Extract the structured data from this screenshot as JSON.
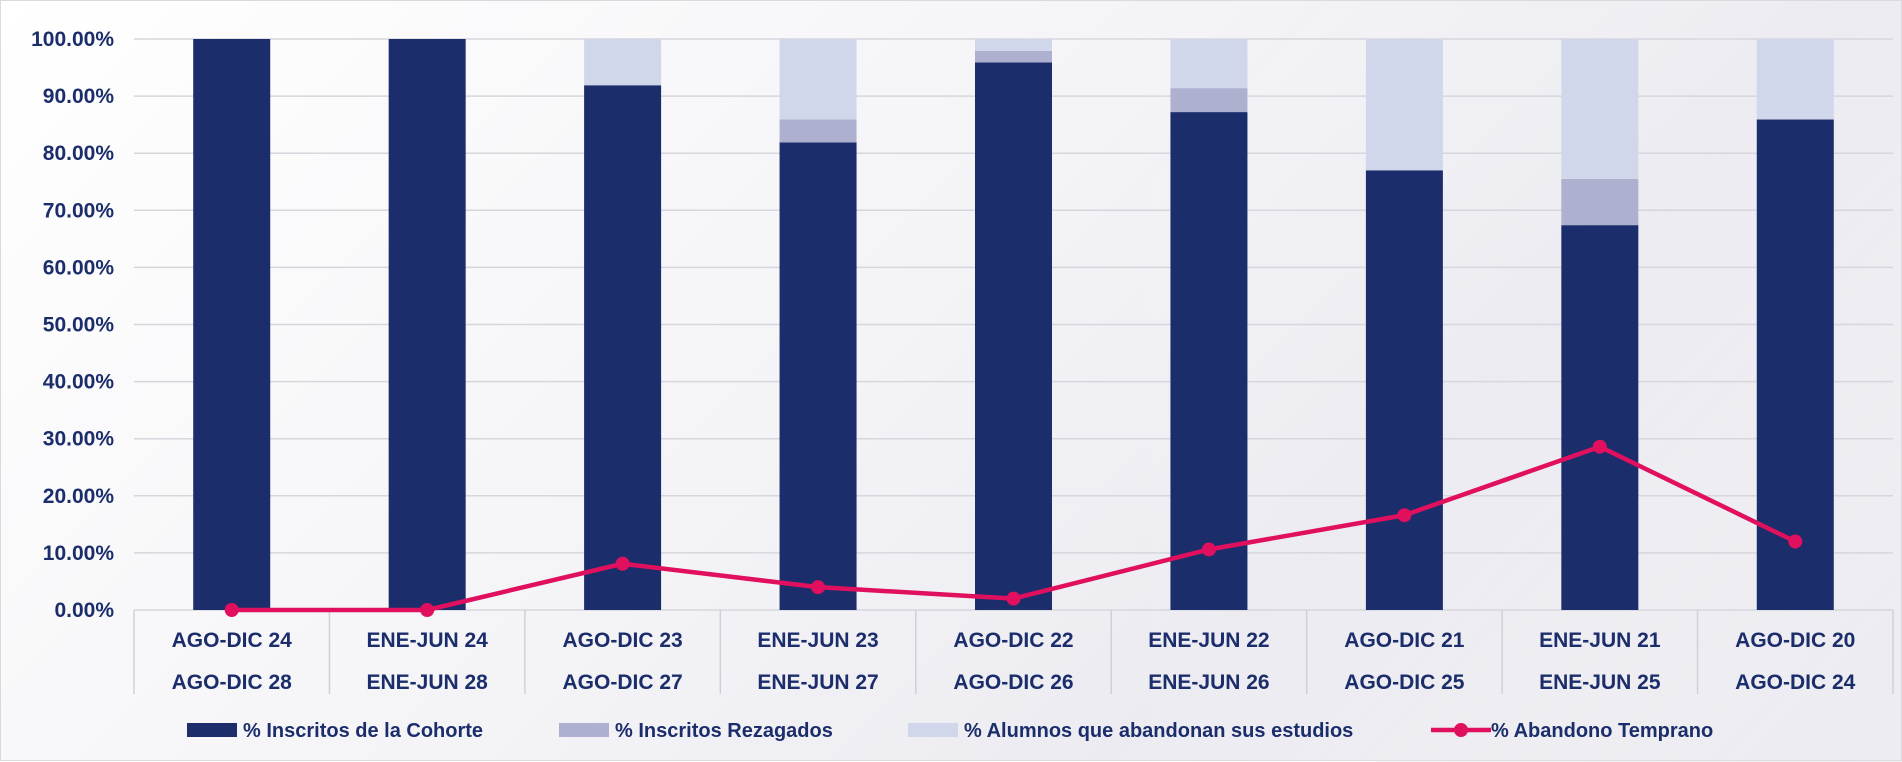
{
  "chart_data": {
    "type": "bar",
    "stacked": true,
    "categories": [
      [
        "AGO-DIC 24",
        "AGO-DIC 28"
      ],
      [
        "ENE-JUN 24",
        "ENE-JUN 28"
      ],
      [
        "AGO-DIC 23",
        "AGO-DIC 27"
      ],
      [
        "ENE-JUN 23",
        "ENE-JUN 27"
      ],
      [
        "AGO-DIC 22",
        "AGO-DIC 26"
      ],
      [
        "ENE-JUN 22",
        "ENE-JUN 26"
      ],
      [
        "AGO-DIC 21",
        "AGO-DIC 25"
      ],
      [
        "ENE-JUN 21",
        "ENE-JUN 25"
      ],
      [
        "AGO-DIC 20",
        "AGO-DIC 24"
      ]
    ],
    "series": [
      {
        "name": "% Inscritos de la Cohorte",
        "kind": "bar",
        "color": "#1b2d6b",
        "values": [
          100,
          100,
          91.9,
          81.9,
          95.9,
          87.2,
          77.0,
          67.4,
          85.9
        ]
      },
      {
        "name": "% Inscritos Rezagados",
        "kind": "bar",
        "color": "#aeb0d0",
        "values": [
          0,
          0,
          0,
          4.0,
          2.0,
          4.2,
          0,
          8.1,
          0
        ]
      },
      {
        "name": "% Alumnos que abandonan sus estudios",
        "kind": "bar",
        "color": "#d0d7ea",
        "values": [
          0,
          0,
          8.1,
          14.1,
          2.1,
          8.6,
          23.0,
          24.5,
          14.1
        ]
      },
      {
        "name": "% Abandono Temprano",
        "kind": "line",
        "color": "#e0105e",
        "values": [
          0,
          0,
          8.1,
          4.0,
          2.0,
          10.6,
          16.6,
          28.6,
          12.0
        ]
      }
    ],
    "yticks": [
      "0.00%",
      "10.00%",
      "20.00%",
      "30.00%",
      "40.00%",
      "50.00%",
      "60.00%",
      "70.00%",
      "80.00%",
      "90.00%",
      "100.00%"
    ],
    "ylim": [
      0,
      100
    ],
    "grid": true,
    "legend_position": "bottom"
  }
}
